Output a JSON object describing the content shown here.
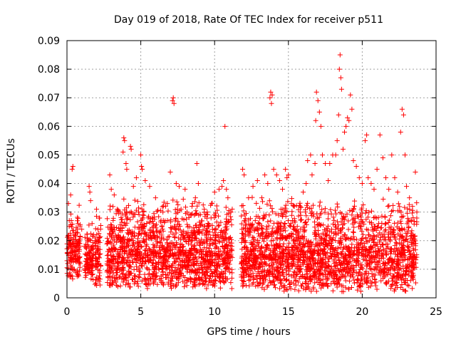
{
  "chart_data": {
    "type": "scatter",
    "title": "Day 019 of 2018, Rate Of TEC Index for receiver p511",
    "xlabel": "GPS time / hours",
    "ylabel": "ROTI / TECUs",
    "xlim": [
      0,
      25
    ],
    "ylim": [
      0,
      0.09
    ],
    "x_ticks": [
      0,
      5,
      10,
      15,
      20,
      25
    ],
    "x_tick_labels": [
      "0",
      "5",
      "10",
      "15",
      "20",
      "25"
    ],
    "y_ticks": [
      0,
      0.01,
      0.02,
      0.03,
      0.04,
      0.05,
      0.06,
      0.07,
      0.08,
      0.09
    ],
    "y_tick_labels": [
      "0",
      "0.01",
      "0.02",
      "0.03",
      "0.04",
      "0.05",
      "0.06",
      "0.07",
      "0.08",
      "0.09"
    ],
    "grid": true,
    "marker": "+",
    "color": "#ff0000",
    "series": [
      {
        "points": [
          [
            0.05,
            0.012
          ],
          [
            0.1,
            0.033
          ],
          [
            0.15,
            0.025
          ],
          [
            0.2,
            0.008
          ],
          [
            0.25,
            0.036
          ],
          [
            0.3,
            0.018
          ],
          [
            0.35,
            0.045
          ],
          [
            0.4,
            0.046
          ],
          [
            0.45,
            0.022
          ],
          [
            0.5,
            0.01
          ],
          [
            0.6,
            0.015
          ],
          [
            0.7,
            0.027
          ],
          [
            0.8,
            0.02
          ],
          [
            0.9,
            0.012
          ],
          [
            1.0,
            0.024
          ],
          [
            1.2,
            0.018
          ],
          [
            1.4,
            0.02
          ],
          [
            1.5,
            0.039
          ],
          [
            1.55,
            0.037
          ],
          [
            1.6,
            0.034
          ],
          [
            1.7,
            0.026
          ],
          [
            1.8,
            0.015
          ],
          [
            1.9,
            0.02
          ],
          [
            2.0,
            0.031
          ],
          [
            2.1,
            0.024
          ],
          [
            2.2,
            0.014
          ],
          [
            2.8,
            0.015
          ],
          [
            2.9,
            0.043
          ],
          [
            3.0,
            0.038
          ],
          [
            3.2,
            0.036
          ],
          [
            3.4,
            0.031
          ],
          [
            3.6,
            0.03
          ],
          [
            3.8,
            0.051
          ],
          [
            3.85,
            0.056
          ],
          [
            3.9,
            0.055
          ],
          [
            4.0,
            0.047
          ],
          [
            4.05,
            0.045
          ],
          [
            4.3,
            0.053
          ],
          [
            4.35,
            0.052
          ],
          [
            4.5,
            0.039
          ],
          [
            4.7,
            0.042
          ],
          [
            5.0,
            0.05
          ],
          [
            5.05,
            0.046
          ],
          [
            5.1,
            0.045
          ],
          [
            5.3,
            0.041
          ],
          [
            5.6,
            0.039
          ],
          [
            6.0,
            0.035
          ],
          [
            6.5,
            0.03
          ],
          [
            6.8,
            0.033
          ],
          [
            7.0,
            0.044
          ],
          [
            7.15,
            0.069
          ],
          [
            7.2,
            0.07
          ],
          [
            7.25,
            0.068
          ],
          [
            7.4,
            0.04
          ],
          [
            7.6,
            0.039
          ],
          [
            8.0,
            0.038
          ],
          [
            8.5,
            0.033
          ],
          [
            8.7,
            0.035
          ],
          [
            8.8,
            0.047
          ],
          [
            8.9,
            0.04
          ],
          [
            9.3,
            0.031
          ],
          [
            9.5,
            0.03
          ],
          [
            9.8,
            0.033
          ],
          [
            10.0,
            0.037
          ],
          [
            10.3,
            0.038
          ],
          [
            10.5,
            0.039
          ],
          [
            10.6,
            0.041
          ],
          [
            10.7,
            0.06
          ],
          [
            10.8,
            0.038
          ],
          [
            10.9,
            0.035
          ],
          [
            11.1,
            0.03
          ],
          [
            11.9,
            0.045
          ],
          [
            12.0,
            0.043
          ],
          [
            12.3,
            0.035
          ],
          [
            12.6,
            0.039
          ],
          [
            12.9,
            0.041
          ],
          [
            13.2,
            0.035
          ],
          [
            13.4,
            0.043
          ],
          [
            13.6,
            0.04
          ],
          [
            13.75,
            0.07
          ],
          [
            13.8,
            0.072
          ],
          [
            13.85,
            0.068
          ],
          [
            13.9,
            0.071
          ],
          [
            14.0,
            0.045
          ],
          [
            14.2,
            0.043
          ],
          [
            14.4,
            0.041
          ],
          [
            14.6,
            0.038
          ],
          [
            14.8,
            0.045
          ],
          [
            14.9,
            0.042
          ],
          [
            15.0,
            0.043
          ],
          [
            15.2,
            0.033
          ],
          [
            15.4,
            0.027
          ],
          [
            15.6,
            0.025
          ],
          [
            15.8,
            0.03
          ],
          [
            16.0,
            0.037
          ],
          [
            16.2,
            0.04
          ],
          [
            16.3,
            0.048
          ],
          [
            16.5,
            0.05
          ],
          [
            16.6,
            0.043
          ],
          [
            16.8,
            0.047
          ],
          [
            16.85,
            0.062
          ],
          [
            16.9,
            0.072
          ],
          [
            17.0,
            0.069
          ],
          [
            17.1,
            0.065
          ],
          [
            17.2,
            0.06
          ],
          [
            17.3,
            0.05
          ],
          [
            17.5,
            0.047
          ],
          [
            17.7,
            0.041
          ],
          [
            17.8,
            0.047
          ],
          [
            18.0,
            0.05
          ],
          [
            18.2,
            0.05
          ],
          [
            18.3,
            0.055
          ],
          [
            18.4,
            0.064
          ],
          [
            18.45,
            0.08
          ],
          [
            18.5,
            0.085
          ],
          [
            18.55,
            0.077
          ],
          [
            18.6,
            0.073
          ],
          [
            18.7,
            0.052
          ],
          [
            18.8,
            0.058
          ],
          [
            18.9,
            0.06
          ],
          [
            19.0,
            0.063
          ],
          [
            19.1,
            0.062
          ],
          [
            19.2,
            0.071
          ],
          [
            19.3,
            0.066
          ],
          [
            19.4,
            0.048
          ],
          [
            19.6,
            0.046
          ],
          [
            19.8,
            0.042
          ],
          [
            20.0,
            0.04
          ],
          [
            20.2,
            0.055
          ],
          [
            20.3,
            0.057
          ],
          [
            20.4,
            0.042
          ],
          [
            20.6,
            0.04
          ],
          [
            20.8,
            0.038
          ],
          [
            21.0,
            0.045
          ],
          [
            21.2,
            0.057
          ],
          [
            21.4,
            0.049
          ],
          [
            21.6,
            0.042
          ],
          [
            21.8,
            0.038
          ],
          [
            22.0,
            0.05
          ],
          [
            22.2,
            0.042
          ],
          [
            22.4,
            0.037
          ],
          [
            22.6,
            0.058
          ],
          [
            22.7,
            0.066
          ],
          [
            22.8,
            0.064
          ],
          [
            22.9,
            0.05
          ],
          [
            23.0,
            0.039
          ],
          [
            23.2,
            0.035
          ],
          [
            23.4,
            0.032
          ],
          [
            23.6,
            0.044
          ],
          [
            23.7,
            0.03
          ]
        ]
      }
    ],
    "bands": [
      {
        "x_range": [
          0.0,
          0.9
        ],
        "y_range": [
          0.006,
          0.034
        ]
      },
      {
        "x_range": [
          1.2,
          1.8
        ],
        "y_range": [
          0.006,
          0.026
        ]
      },
      {
        "x_range": [
          1.9,
          2.3
        ],
        "y_range": [
          0.004,
          0.031
        ]
      },
      {
        "x_range": [
          2.7,
          11.2
        ],
        "y_range": [
          0.003,
          0.036
        ]
      },
      {
        "x_range": [
          11.8,
          23.7
        ],
        "y_range": [
          0.002,
          0.036
        ]
      }
    ]
  }
}
